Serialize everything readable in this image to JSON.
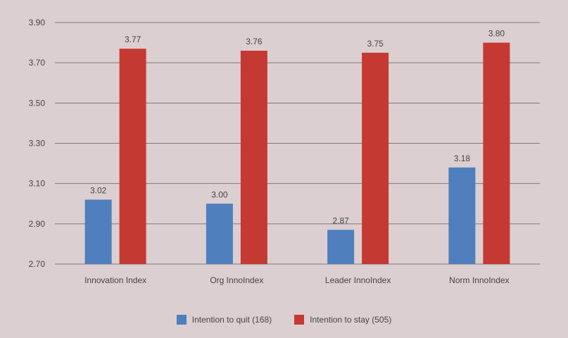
{
  "chart_data": {
    "type": "bar",
    "categories": [
      "Innovation Index",
      "Org InnoIndex",
      "Leader InnoIndex",
      "Norm InnoIndex"
    ],
    "series": [
      {
        "name": "Intention to quit (168)",
        "values": [
          3.02,
          3.0,
          2.87,
          3.18
        ],
        "color": "#4f7fbd",
        "labels": [
          "3.02",
          "3.00",
          "2.87",
          "3.18"
        ]
      },
      {
        "name": "Intention to stay (505)",
        "values": [
          3.77,
          3.76,
          3.75,
          3.8
        ],
        "color": "#c43a32",
        "labels": [
          "3.77",
          "3.76",
          "3.75",
          "3.80"
        ]
      }
    ],
    "ylim": [
      2.7,
      3.9
    ],
    "yticks": [
      "2.70",
      "2.90",
      "3.10",
      "3.30",
      "3.50",
      "3.70",
      "3.90"
    ],
    "grid": true,
    "legend_position": "bottom"
  }
}
